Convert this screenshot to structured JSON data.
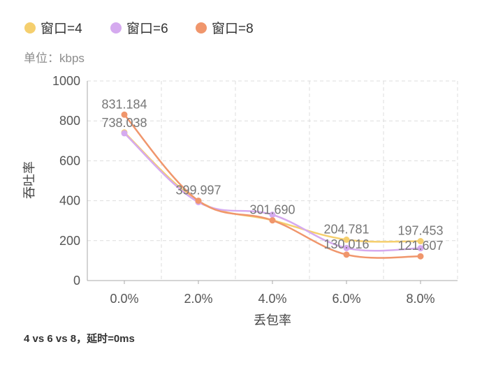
{
  "chart_data": {
    "type": "line",
    "unit_label": "单位：kbps",
    "xlabel": "丢包率",
    "ylabel": "吞吐率",
    "categories": [
      "0.0%",
      "2.0%",
      "4.0%",
      "6.0%",
      "8.0%"
    ],
    "ylim": [
      0,
      1000
    ],
    "yticks": [
      0,
      200,
      400,
      600,
      800,
      1000
    ],
    "grid": true,
    "smooth": true,
    "legend_position": "top-left",
    "series": [
      {
        "name": "窗口=4",
        "color": "#f5cf6e",
        "values": [
          742,
          398,
          302,
          204.781,
          197.453
        ],
        "labels": [
          "",
          "",
          "",
          "204.781",
          "197.453"
        ]
      },
      {
        "name": "窗口=6",
        "color": "#d5aaef",
        "values": [
          738.038,
          393,
          330,
          163,
          162
        ],
        "labels": [
          "738.038",
          "",
          "",
          "",
          ""
        ]
      },
      {
        "name": "窗口=8",
        "color": "#f0966c",
        "values": [
          831.184,
          399.997,
          301.69,
          130.016,
          121.607
        ],
        "labels": [
          "831.184",
          "399.997",
          "301.690",
          "130.016",
          "121.607"
        ]
      }
    ]
  },
  "caption": "4 vs 6 vs 8，延时=0ms"
}
